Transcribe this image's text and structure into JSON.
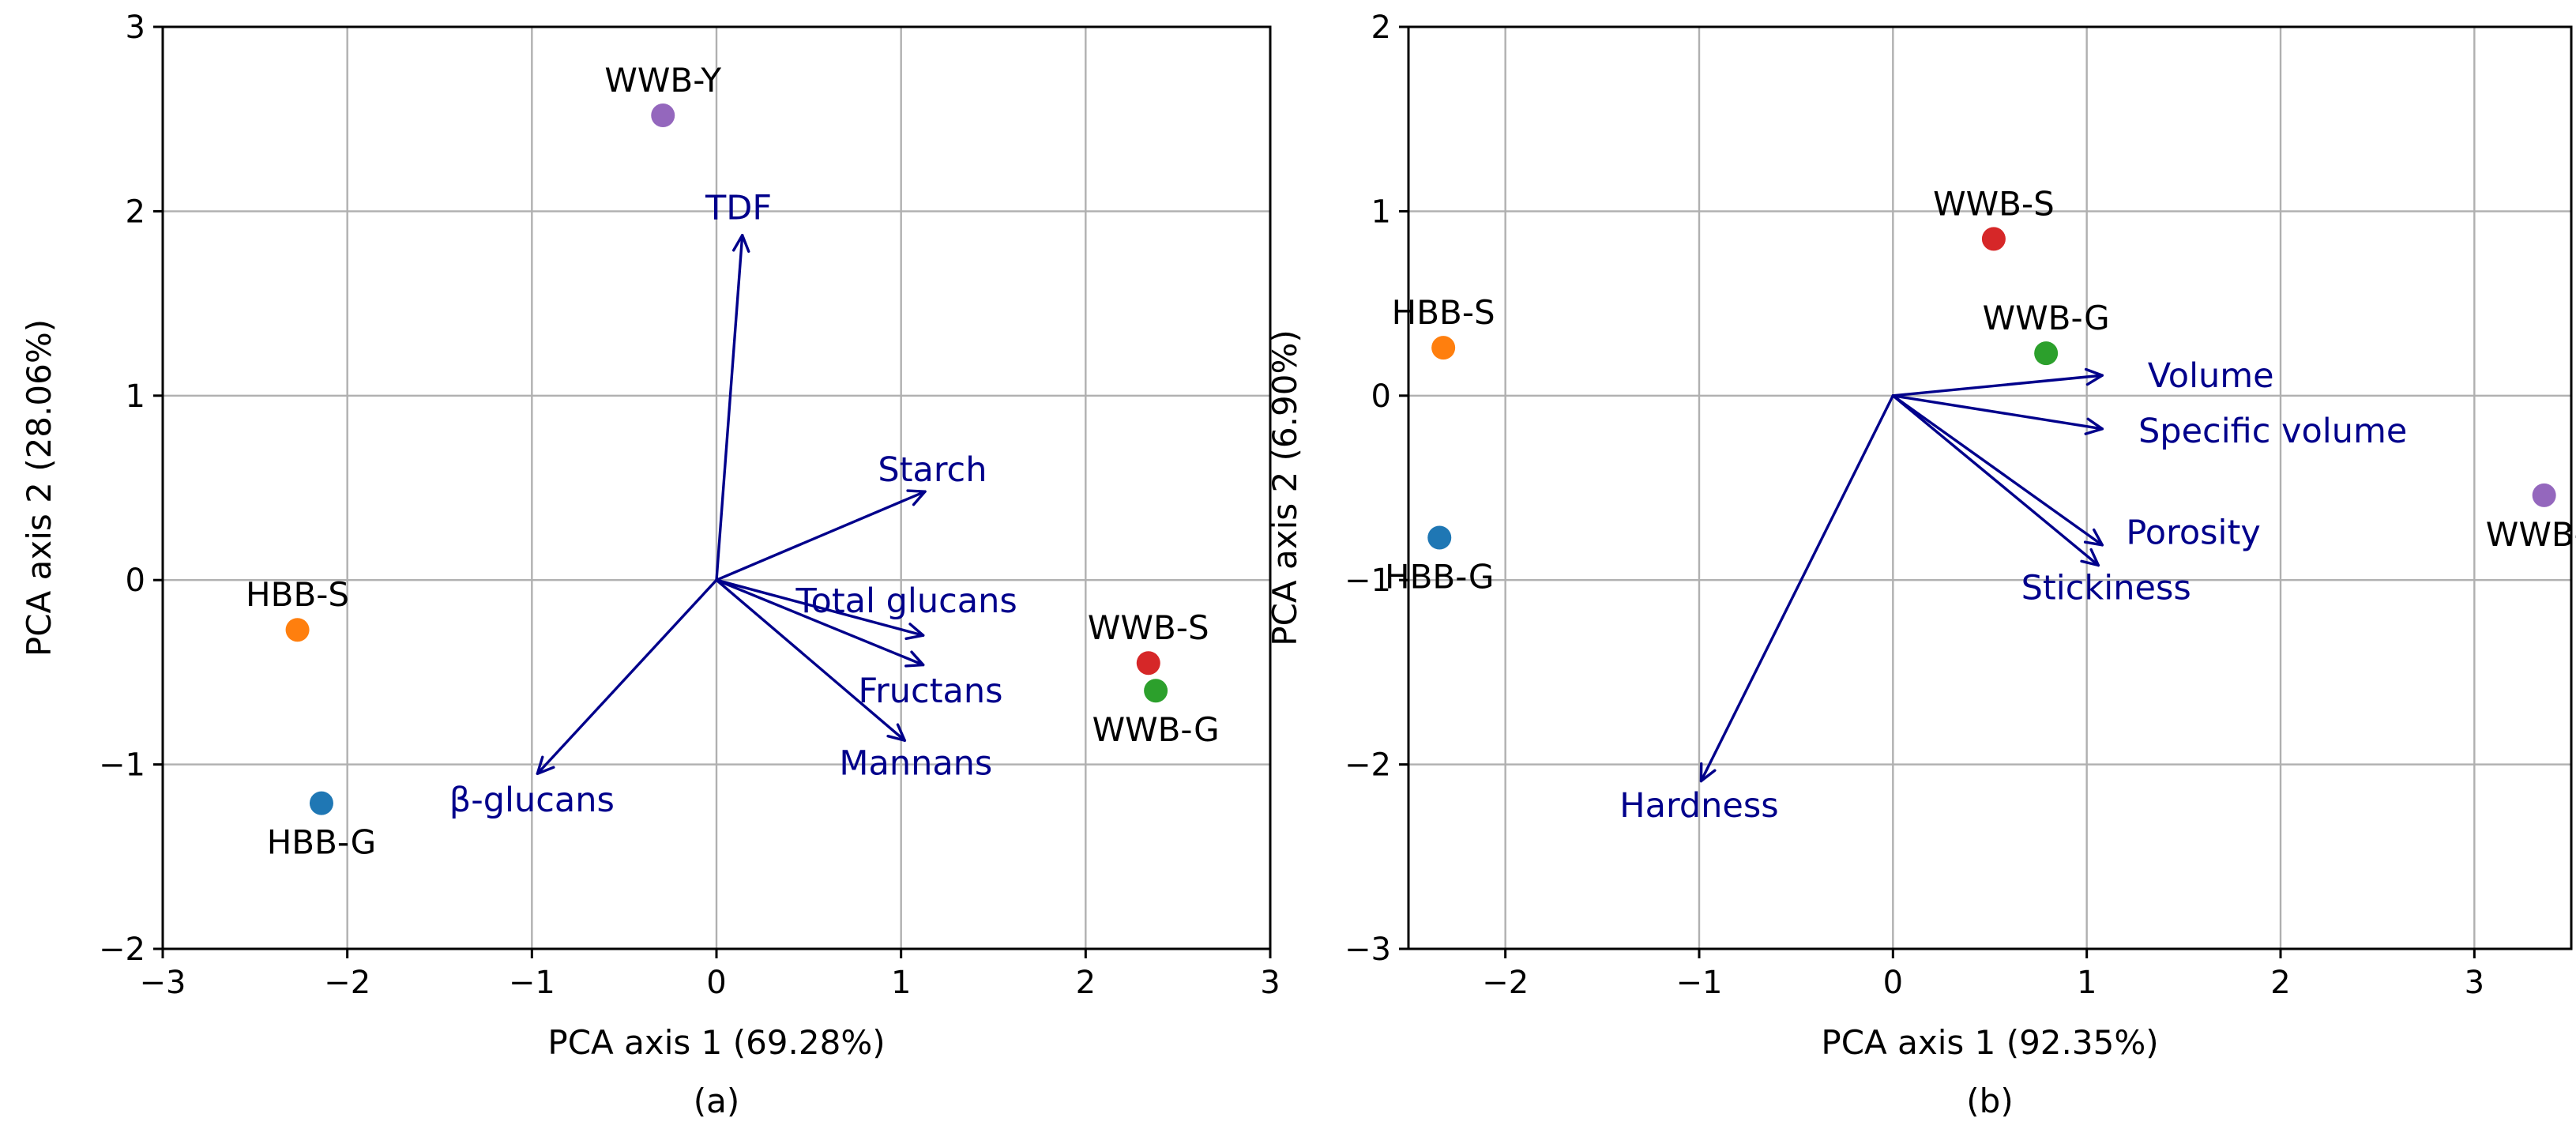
{
  "chart_data": [
    {
      "type": "scatter",
      "subtype": "pca-biplot",
      "caption": "(a)",
      "xlabel": "PCA axis 1 (69.28%)",
      "ylabel": "PCA axis 2 (28.06%)",
      "xlim": [
        -3,
        3
      ],
      "ylim": [
        -2,
        3
      ],
      "xticks": [
        -3,
        -2,
        -1,
        0,
        1,
        2,
        3
      ],
      "yticks": [
        -2,
        -1,
        0,
        1,
        2,
        3
      ],
      "tick_labels": {
        "x": [
          "−3",
          "−2",
          "−1",
          "0",
          "1",
          "2",
          "3"
        ],
        "y": [
          "−2",
          "−1",
          "0",
          "1",
          "2",
          "3"
        ]
      },
      "grid": true,
      "points": [
        {
          "name": "WWB-Y",
          "x": -0.29,
          "y": 2.52,
          "color": "#9467bd",
          "label_pos": "above"
        },
        {
          "name": "HBB-S",
          "x": -2.27,
          "y": -0.27,
          "color": "#ff7f0e",
          "label_pos": "above"
        },
        {
          "name": "HBB-G",
          "x": -2.14,
          "y": -1.21,
          "color": "#1f77b4",
          "label_pos": "below"
        },
        {
          "name": "WWB-S",
          "x": 2.34,
          "y": -0.45,
          "color": "#d62728",
          "label_pos": "above"
        },
        {
          "name": "WWB-G",
          "x": 2.38,
          "y": -0.6,
          "color": "#2ca02c",
          "label_pos": "below"
        }
      ],
      "loadings": [
        {
          "name": "TDF",
          "x": 0.14,
          "y": 1.87,
          "label_x": 0.12,
          "label_y": 2.02
        },
        {
          "name": "Starch",
          "x": 1.13,
          "y": 0.48,
          "label_x": 1.17,
          "label_y": 0.6
        },
        {
          "name": "Total glucans",
          "x": 1.12,
          "y": -0.3,
          "label_x": 1.03,
          "label_y": -0.11
        },
        {
          "name": "Fructans",
          "x": 1.12,
          "y": -0.46,
          "label_x": 1.16,
          "label_y": -0.6
        },
        {
          "name": "Mannans",
          "x": 1.02,
          "y": -0.87,
          "label_x": 1.08,
          "label_y": -0.99
        },
        {
          "name": "β-glucans",
          "x": -0.97,
          "y": -1.05,
          "label_x": -1.0,
          "label_y": -1.19
        }
      ],
      "arrow_color": "#00008b"
    },
    {
      "type": "scatter",
      "subtype": "pca-biplot",
      "caption": "(b)",
      "xlabel": "PCA axis 1 (92.35%)",
      "ylabel": "PCA axis 2 (6.90%)",
      "xlim": [
        -2.5,
        3.5
      ],
      "ylim": [
        -3,
        2
      ],
      "xticks": [
        -2,
        -1,
        0,
        1,
        2,
        3
      ],
      "yticks": [
        -3,
        -2,
        -1,
        0,
        1,
        2
      ],
      "tick_labels": {
        "x": [
          "−2",
          "−1",
          "0",
          "1",
          "2",
          "3"
        ],
        "y": [
          "−3",
          "−2",
          "−1",
          "0",
          "1",
          "2"
        ]
      },
      "grid": true,
      "points": [
        {
          "name": "WWB-S",
          "x": 0.52,
          "y": 0.85,
          "color": "#d62728",
          "label_pos": "above"
        },
        {
          "name": "HBB-S",
          "x": -2.32,
          "y": 0.26,
          "color": "#ff7f0e",
          "label_pos": "above"
        },
        {
          "name": "WWB-G",
          "x": 0.79,
          "y": 0.23,
          "color": "#2ca02c",
          "label_pos": "above"
        },
        {
          "name": "HBB-G",
          "x": -2.34,
          "y": -0.77,
          "color": "#1f77b4",
          "label_pos": "below"
        },
        {
          "name": "WWB-Y",
          "x": 3.36,
          "y": -0.54,
          "color": "#9467bd",
          "label_pos": "below"
        }
      ],
      "loadings": [
        {
          "name": "Volume",
          "x": 1.08,
          "y": 0.11,
          "label_x": 1.64,
          "label_y": 0.11
        },
        {
          "name": "Specific volume",
          "x": 1.08,
          "y": -0.18,
          "label_x": 1.96,
          "label_y": -0.19
        },
        {
          "name": "Porosity",
          "x": 1.08,
          "y": -0.81,
          "label_x": 1.55,
          "label_y": -0.74
        },
        {
          "name": "Stickiness",
          "x": 1.06,
          "y": -0.92,
          "label_x": 1.1,
          "label_y": -1.04
        },
        {
          "name": "Hardness",
          "x": -0.99,
          "y": -2.09,
          "label_x": -1.0,
          "label_y": -2.22
        }
      ],
      "arrow_color": "#00008b"
    }
  ]
}
